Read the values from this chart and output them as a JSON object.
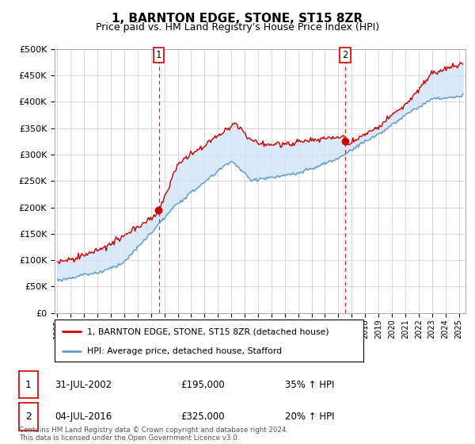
{
  "title": "1, BARNTON EDGE, STONE, ST15 8ZR",
  "subtitle": "Price paid vs. HM Land Registry's House Price Index (HPI)",
  "ylabel_ticks": [
    "£0",
    "£50K",
    "£100K",
    "£150K",
    "£200K",
    "£250K",
    "£300K",
    "£350K",
    "£400K",
    "£450K",
    "£500K"
  ],
  "ytick_values": [
    0,
    50000,
    100000,
    150000,
    200000,
    250000,
    300000,
    350000,
    400000,
    450000,
    500000
  ],
  "ylim": [
    0,
    500000
  ],
  "xlim_start": 1994.8,
  "xlim_end": 2025.5,
  "sale1_date": 2002.58,
  "sale1_price": 195000,
  "sale2_date": 2016.5,
  "sale2_price": 325000,
  "legend_line1": "1, BARNTON EDGE, STONE, ST15 8ZR (detached house)",
  "legend_line2": "HPI: Average price, detached house, Stafford",
  "annotation1_date": "31-JUL-2002",
  "annotation1_price": "£195,000",
  "annotation1_hpi": "35% ↑ HPI",
  "annotation2_date": "04-JUL-2016",
  "annotation2_price": "£325,000",
  "annotation2_hpi": "20% ↑ HPI",
  "footer": "Contains HM Land Registry data © Crown copyright and database right 2024.\nThis data is licensed under the Open Government Licence v3.0.",
  "line1_color": "#cc0000",
  "line2_color": "#6699cc",
  "fill_color": "#d0e4f5",
  "background_color": "#ffffff",
  "grid_color": "#cccccc",
  "title_fontsize": 11,
  "subtitle_fontsize": 9
}
